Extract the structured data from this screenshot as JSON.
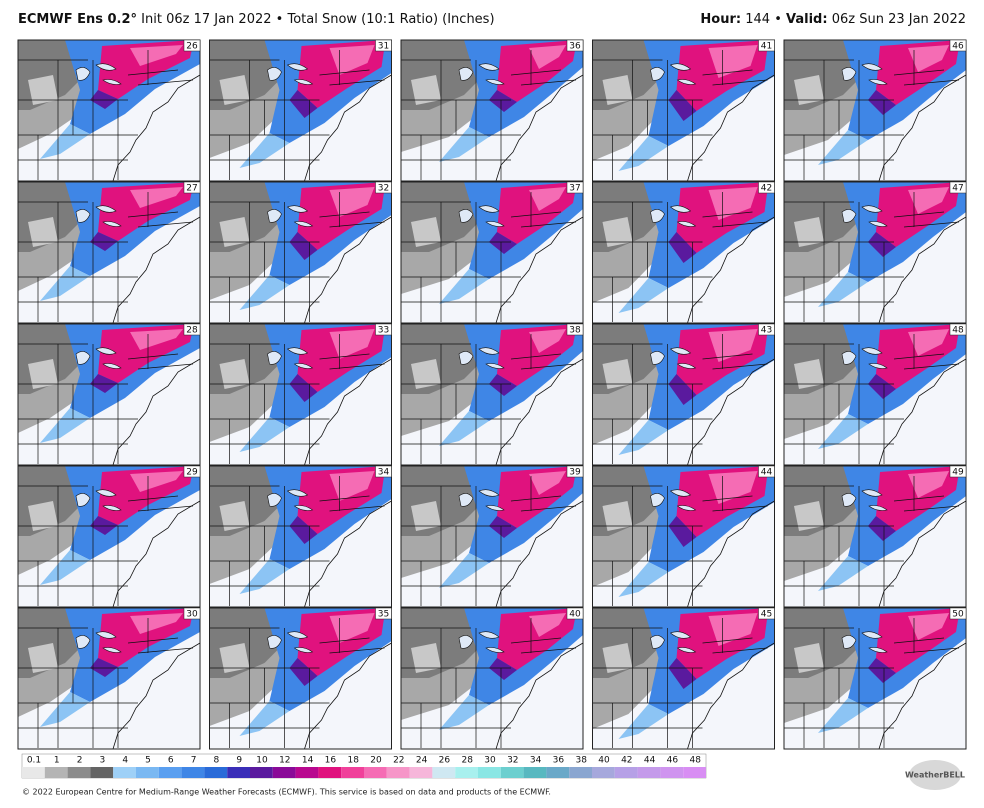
{
  "header": {
    "model": "ECMWF Ens 0.2°",
    "init": "Init 06z 17 Jan 2022",
    "separator": "•",
    "product": "Total Snow (10:1 Ratio) (Inches)",
    "hour_label": "Hour:",
    "hour": "144",
    "valid_label": "Valid:",
    "valid": "06z Sun 23 Jan 2022"
  },
  "panels": [
    "26",
    "31",
    "36",
    "41",
    "46",
    "27",
    "32",
    "37",
    "42",
    "47",
    "28",
    "33",
    "38",
    "43",
    "48",
    "29",
    "34",
    "39",
    "44",
    "49",
    "30",
    "35",
    "40",
    "45",
    "50"
  ],
  "colorbar": {
    "labels": [
      "0.1",
      "1",
      "2",
      "3",
      "4",
      "5",
      "6",
      "7",
      "8",
      "9",
      "10",
      "12",
      "14",
      "16",
      "18",
      "20",
      "22",
      "24",
      "26",
      "28",
      "30",
      "32",
      "34",
      "36",
      "38",
      "40",
      "42",
      "44",
      "46",
      "48"
    ],
    "colors": [
      "#e8e8e8",
      "#b4b4b4",
      "#8c8c8c",
      "#646464",
      "#9ed0f7",
      "#7ab8f2",
      "#5a9ff0",
      "#3f86e6",
      "#2a6bd8",
      "#3a2eb8",
      "#5a1a9e",
      "#8a0a98",
      "#b8088f",
      "#e0127e",
      "#f0409a",
      "#f56cb4",
      "#f696c8",
      "#f6b6da",
      "#cfe8f2",
      "#a8f0ee",
      "#8ae6e4",
      "#6ccfcf",
      "#58b8c0",
      "#6aa8c8",
      "#8aa6d0",
      "#a6a8dc",
      "#b6a0e6",
      "#c49aea",
      "#cf94ef",
      "#d88ef3"
    ]
  },
  "footer": "© 2022 European Centre for Medium-Range Weather Forecasts (ECMWF). This service is based on data and products of the ECMWF.",
  "logo": "WeatherBELL"
}
